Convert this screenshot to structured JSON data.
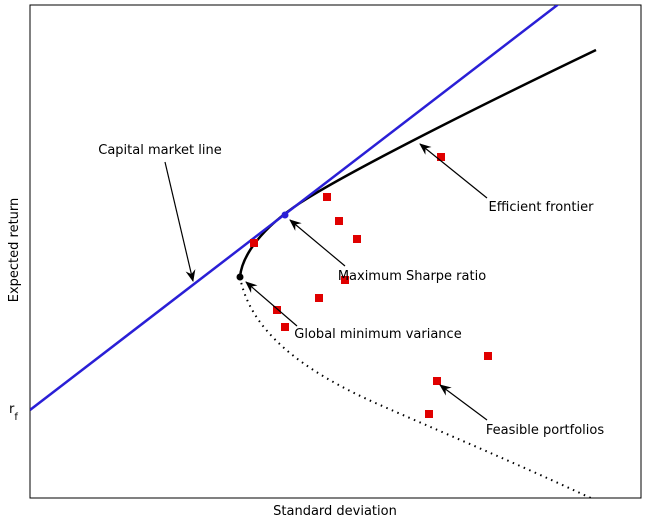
{
  "labels": {
    "capital_market_line": "Capital market line",
    "efficient_frontier": "Efficient frontier",
    "maximum_sharpe_ratio": "Maximum Sharpe ratio",
    "global_minimum_variance": "Global minimum variance",
    "feasible_portfolios": "Feasible portfolios"
  },
  "axes": {
    "x_label": "Standard deviation",
    "y_label": "Expected return",
    "rf": {
      "main": "r",
      "sub": "f"
    }
  }
}
